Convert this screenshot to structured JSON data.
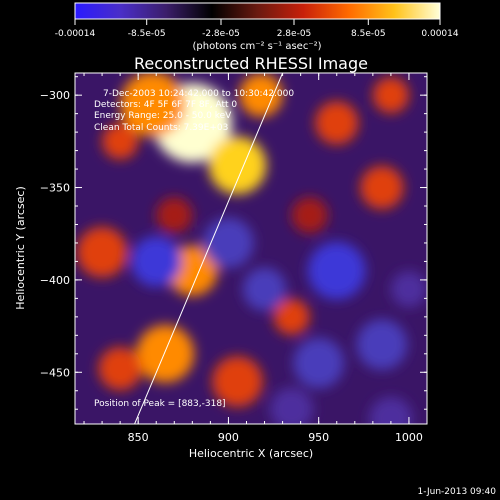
{
  "colorbar": {
    "tick_labels": [
      "-0.00014",
      "-8.5e-05",
      "-2.8e-05",
      "2.8e-05",
      "8.5e-05",
      "0.00014"
    ],
    "units": "(photons cm⁻² s⁻¹ asec⁻²)",
    "range": [
      -0.00014,
      0.00014
    ],
    "colors": [
      "#2a1aff",
      "#4a2ec8",
      "#3b1e6a",
      "#000000",
      "#6a1a10",
      "#c8200a",
      "#ff6a00",
      "#ffc21a",
      "#ffffd8"
    ]
  },
  "chart_data": {
    "type": "heatmap",
    "title": "Reconstructed RHESSI Image",
    "xlabel": "Heliocentric X (arcsec)",
    "ylabel": "Heliocentric Y (arcsec)",
    "xlim": [
      815,
      1010
    ],
    "ylim": [
      -478,
      -288
    ],
    "x_ticks": [
      850,
      900,
      950,
      1000
    ],
    "y_ticks": [
      -300,
      -350,
      -400,
      -450
    ],
    "annotations": {
      "time": "7-Dec-2003 10:24:42.000 to 10:30:42.000",
      "detectors": "Detectors: 4F 5F 6F 7F 8F, Att 0",
      "energy": "Energy Range: 25.0 - 50.0 keV",
      "clean": "Clean    Total Counts: 7.39E+03",
      "peak": "Position of Peak = [883,-318]"
    },
    "limb_line": [
      [
        848,
        -478
      ],
      [
        930,
        -288
      ]
    ],
    "peak": [
      883,
      -318
    ],
    "blobs": [
      {
        "x": 880,
        "y": -315,
        "r": 22,
        "v": 1.0
      },
      {
        "x": 905,
        "y": -338,
        "r": 16,
        "v": 0.85
      },
      {
        "x": 858,
        "y": -305,
        "r": 18,
        "v": 0.55
      },
      {
        "x": 918,
        "y": -300,
        "r": 12,
        "v": 0.5
      },
      {
        "x": 840,
        "y": -325,
        "r": 10,
        "v": 0.35
      },
      {
        "x": 830,
        "y": -385,
        "r": 14,
        "v": 0.45
      },
      {
        "x": 880,
        "y": -395,
        "r": 14,
        "v": 0.5
      },
      {
        "x": 865,
        "y": -440,
        "r": 16,
        "v": 0.6
      },
      {
        "x": 840,
        "y": -448,
        "r": 12,
        "v": 0.45
      },
      {
        "x": 905,
        "y": -455,
        "r": 14,
        "v": 0.45
      },
      {
        "x": 935,
        "y": -420,
        "r": 10,
        "v": 0.35
      },
      {
        "x": 960,
        "y": -315,
        "r": 12,
        "v": 0.4
      },
      {
        "x": 990,
        "y": -300,
        "r": 10,
        "v": 0.35
      },
      {
        "x": 985,
        "y": -350,
        "r": 12,
        "v": 0.35
      },
      {
        "x": 945,
        "y": -365,
        "r": 10,
        "v": 0.3
      },
      {
        "x": 870,
        "y": -365,
        "r": 10,
        "v": 0.3
      },
      {
        "x": 860,
        "y": -390,
        "r": 14,
        "v": -0.8
      },
      {
        "x": 900,
        "y": -380,
        "r": 14,
        "v": -0.6
      },
      {
        "x": 920,
        "y": -405,
        "r": 12,
        "v": -0.55
      },
      {
        "x": 960,
        "y": -395,
        "r": 16,
        "v": -0.7
      },
      {
        "x": 985,
        "y": -435,
        "r": 14,
        "v": -0.65
      },
      {
        "x": 950,
        "y": -445,
        "r": 14,
        "v": -0.6
      },
      {
        "x": 1000,
        "y": -405,
        "r": 10,
        "v": -0.5
      },
      {
        "x": 935,
        "y": -470,
        "r": 12,
        "v": -0.5
      },
      {
        "x": 990,
        "y": -475,
        "r": 12,
        "v": -0.45
      }
    ]
  },
  "footer": {
    "timestamp": "1-Jun-2013 09:40"
  }
}
